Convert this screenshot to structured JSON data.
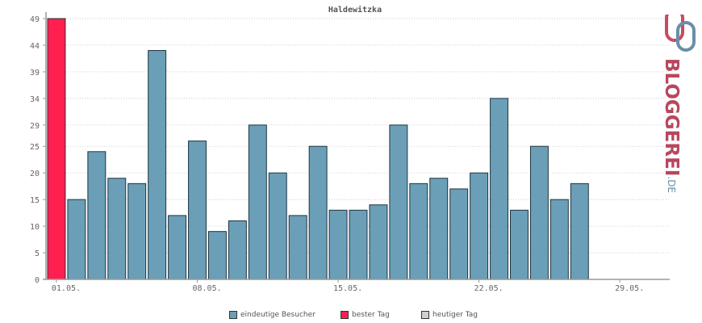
{
  "chart_data": {
    "type": "bar",
    "title": "Haldewitzka",
    "xlabel": "",
    "ylabel": "",
    "ylim": [
      0,
      49
    ],
    "yticks": [
      0,
      5,
      10,
      15,
      20,
      25,
      29,
      34,
      39,
      44,
      49
    ],
    "x_tick_labels": [
      "01.05.",
      "08.05.",
      "15.05.",
      "22.05.",
      "29.05."
    ],
    "x_tick_days": [
      1,
      8,
      15,
      22,
      29
    ],
    "days": [
      1,
      2,
      3,
      4,
      5,
      6,
      7,
      8,
      9,
      10,
      11,
      12,
      13,
      14,
      15,
      16,
      17,
      18,
      19,
      20,
      21,
      22,
      23,
      24,
      25,
      26,
      27,
      28,
      29,
      30,
      31
    ],
    "values": [
      49,
      15,
      24,
      19,
      18,
      43,
      12,
      26,
      9,
      11,
      29,
      20,
      12,
      25,
      13,
      13,
      14,
      29,
      18,
      19,
      17,
      20,
      34,
      13,
      25,
      15,
      18,
      0,
      0,
      0,
      0
    ],
    "best_day": 1,
    "grid": true,
    "legend_position": "bottom",
    "colors": {
      "visitors": "#6a9fb7",
      "best_day": "#ff2050",
      "today": "#d0d0d0"
    }
  },
  "legend": {
    "visitors_label": "eindeutige Besucher",
    "best_label": "bester Tag",
    "today_label": "heutiger Tag"
  },
  "logo": {
    "text": "BLOGGEREI",
    "suffix": ".DE"
  }
}
